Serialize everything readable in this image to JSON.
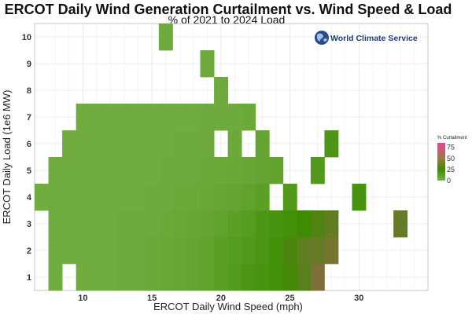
{
  "chart_data": {
    "type": "heatmap",
    "title": "ERCOT Daily Wind Generation Curtailment vs. Wind Speed & Load",
    "subtitle": "% of 2021 to 2024 Load",
    "xlabel": "ERCOT Daily Wind Speed (mph)",
    "ylabel": "ERCOT Daily Load (1e6 MW)",
    "xlim": [
      6.5,
      35
    ],
    "ylim": [
      0.5,
      10.5
    ],
    "xticks": [
      "10",
      "15",
      "20",
      "25",
      "30"
    ],
    "xtick_values": [
      10,
      15,
      20,
      25,
      30
    ],
    "yticks": [
      "1",
      "2",
      "3",
      "4",
      "5",
      "6",
      "7",
      "8",
      "9",
      "10"
    ],
    "ytick_values": [
      1,
      2,
      3,
      4,
      5,
      6,
      7,
      8,
      9,
      10
    ],
    "bin_width": 1,
    "bin_height": 1,
    "grid": true,
    "legend": {
      "title": "% Curtailment",
      "ticks": [
        "0",
        "25",
        "50",
        "75"
      ],
      "tick_values": [
        0,
        25,
        50,
        75
      ],
      "range": [
        0,
        85
      ],
      "placement": "right"
    },
    "colors": {
      "low": "#78b04a",
      "mid": "#3c8c00",
      "high": "#e8439a"
    },
    "cells": [
      [
        8,
        1,
        3
      ],
      [
        10,
        1,
        3
      ],
      [
        11,
        1,
        3
      ],
      [
        12,
        1,
        3
      ],
      [
        13,
        1,
        4
      ],
      [
        14,
        1,
        4
      ],
      [
        15,
        1,
        5
      ],
      [
        16,
        1,
        6
      ],
      [
        17,
        1,
        7
      ],
      [
        18,
        1,
        8
      ],
      [
        19,
        1,
        10
      ],
      [
        20,
        1,
        12
      ],
      [
        21,
        1,
        15
      ],
      [
        22,
        1,
        18
      ],
      [
        23,
        1,
        20
      ],
      [
        24,
        1,
        22
      ],
      [
        25,
        1,
        28
      ],
      [
        26,
        1,
        35
      ],
      [
        27,
        1,
        48
      ],
      [
        8,
        2,
        3
      ],
      [
        9,
        2,
        3
      ],
      [
        10,
        2,
        3
      ],
      [
        11,
        2,
        3
      ],
      [
        12,
        2,
        3
      ],
      [
        13,
        2,
        4
      ],
      [
        14,
        2,
        4
      ],
      [
        15,
        2,
        5
      ],
      [
        16,
        2,
        6
      ],
      [
        17,
        2,
        7
      ],
      [
        18,
        2,
        8
      ],
      [
        19,
        2,
        10
      ],
      [
        20,
        2,
        12
      ],
      [
        21,
        2,
        14
      ],
      [
        22,
        2,
        16
      ],
      [
        23,
        2,
        18
      ],
      [
        24,
        2,
        22
      ],
      [
        25,
        2,
        30
      ],
      [
        26,
        2,
        38
      ],
      [
        27,
        2,
        40
      ],
      [
        28,
        2,
        45
      ],
      [
        8,
        3,
        3
      ],
      [
        9,
        3,
        3
      ],
      [
        10,
        3,
        3
      ],
      [
        11,
        3,
        3
      ],
      [
        12,
        3,
        3
      ],
      [
        13,
        3,
        4
      ],
      [
        14,
        3,
        4
      ],
      [
        15,
        3,
        4
      ],
      [
        16,
        3,
        5
      ],
      [
        17,
        3,
        6
      ],
      [
        18,
        3,
        7
      ],
      [
        19,
        3,
        8
      ],
      [
        20,
        3,
        10
      ],
      [
        21,
        3,
        12
      ],
      [
        22,
        3,
        14
      ],
      [
        23,
        3,
        18
      ],
      [
        24,
        3,
        20
      ],
      [
        25,
        3,
        22
      ],
      [
        26,
        3,
        26
      ],
      [
        27,
        3,
        32
      ],
      [
        28,
        3,
        38
      ],
      [
        33,
        3,
        40
      ],
      [
        7,
        4,
        3
      ],
      [
        8,
        4,
        3
      ],
      [
        9,
        4,
        3
      ],
      [
        10,
        4,
        3
      ],
      [
        11,
        4,
        3
      ],
      [
        12,
        4,
        3
      ],
      [
        13,
        4,
        3
      ],
      [
        14,
        4,
        3
      ],
      [
        15,
        4,
        4
      ],
      [
        16,
        4,
        4
      ],
      [
        17,
        4,
        5
      ],
      [
        18,
        4,
        5
      ],
      [
        19,
        4,
        6
      ],
      [
        20,
        4,
        7
      ],
      [
        21,
        4,
        8
      ],
      [
        22,
        4,
        10
      ],
      [
        23,
        4,
        12
      ],
      [
        25,
        4,
        16
      ],
      [
        30,
        4,
        20
      ],
      [
        8,
        5,
        3
      ],
      [
        9,
        5,
        3
      ],
      [
        10,
        5,
        3
      ],
      [
        11,
        5,
        3
      ],
      [
        12,
        5,
        3
      ],
      [
        13,
        5,
        3
      ],
      [
        14,
        5,
        3
      ],
      [
        15,
        5,
        3
      ],
      [
        16,
        5,
        4
      ],
      [
        17,
        5,
        4
      ],
      [
        18,
        5,
        4
      ],
      [
        19,
        5,
        5
      ],
      [
        20,
        5,
        5
      ],
      [
        21,
        5,
        6
      ],
      [
        22,
        5,
        7
      ],
      [
        23,
        5,
        8
      ],
      [
        24,
        5,
        9
      ],
      [
        27,
        5,
        16
      ],
      [
        9,
        6,
        3
      ],
      [
        10,
        6,
        3
      ],
      [
        11,
        6,
        3
      ],
      [
        12,
        6,
        3
      ],
      [
        13,
        6,
        3
      ],
      [
        14,
        6,
        3
      ],
      [
        15,
        6,
        3
      ],
      [
        16,
        6,
        3
      ],
      [
        17,
        6,
        4
      ],
      [
        18,
        6,
        4
      ],
      [
        19,
        6,
        4
      ],
      [
        21,
        6,
        5
      ],
      [
        23,
        6,
        8
      ],
      [
        28,
        6,
        18
      ],
      [
        10,
        7,
        3
      ],
      [
        11,
        7,
        3
      ],
      [
        12,
        7,
        3
      ],
      [
        13,
        7,
        3
      ],
      [
        14,
        7,
        3
      ],
      [
        15,
        7,
        3
      ],
      [
        16,
        7,
        3
      ],
      [
        17,
        7,
        3
      ],
      [
        18,
        7,
        3
      ],
      [
        19,
        7,
        4
      ],
      [
        20,
        7,
        4
      ],
      [
        21,
        7,
        4
      ],
      [
        22,
        7,
        5
      ],
      [
        20,
        8,
        4
      ],
      [
        19,
        9,
        4
      ],
      [
        16,
        10,
        4
      ]
    ]
  },
  "logo": {
    "text": "World Climate Service"
  }
}
